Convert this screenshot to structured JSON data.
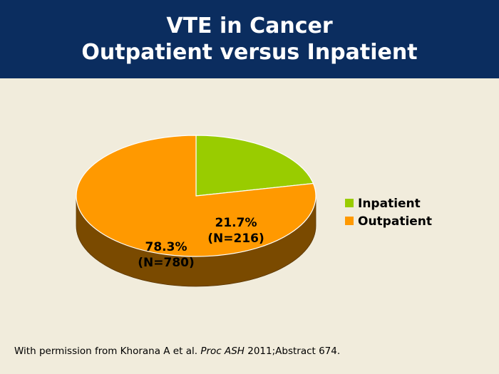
{
  "header": {
    "title_line1": "VTE in Cancer",
    "title_line2": "Outpatient versus Inpatient"
  },
  "chart_data": {
    "type": "pie",
    "style": "3d",
    "slices": [
      {
        "name": "Inpatient",
        "value": 21.7,
        "count": 216,
        "label": "21.7%",
        "count_label": "(N=216)",
        "color": "#99cc00"
      },
      {
        "name": "Outpatient",
        "value": 78.3,
        "count": 780,
        "label": "78.3%",
        "count_label": "(N=780)",
        "color": "#ff9900"
      }
    ],
    "legend": [
      "Inpatient",
      "Outpatient"
    ],
    "legend_placement": "right",
    "side_color": "#7a4a00"
  },
  "footer": {
    "prefix": "With permission from Khorana A et al. ",
    "journal": "Proc ASH",
    "suffix": " 2011;Abstract 674."
  }
}
